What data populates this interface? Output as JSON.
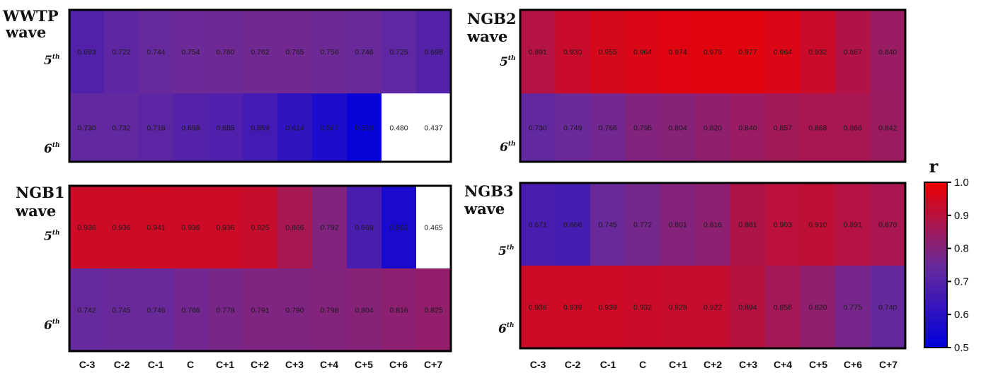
{
  "chart_data": [
    {
      "type": "heatmap",
      "title": "WWTP wave",
      "title_lines": [
        "WWTP",
        "wave"
      ],
      "rows": [
        {
          "base": "5",
          "sup": "th"
        },
        {
          "base": "6",
          "sup": "th"
        }
      ],
      "columns": [
        "C-3",
        "C-2",
        "C-1",
        "C",
        "C+1",
        "C+2",
        "C+3",
        "C+4",
        "C+5",
        "C+6",
        "C+7"
      ],
      "show_column_labels": true,
      "values": [
        [
          0.693,
          0.722,
          0.744,
          0.754,
          0.76,
          0.762,
          0.765,
          0.756,
          0.746,
          0.725,
          0.698
        ],
        [
          0.73,
          0.732,
          0.718,
          0.698,
          0.685,
          0.659,
          0.614,
          0.567,
          0.519,
          0.48,
          0.437
        ]
      ],
      "labels": [
        [
          "0.693",
          "0.722",
          "0.744",
          "0.754",
          "0.760",
          "0.762",
          "0.765",
          "0.756",
          "0.746",
          "0.725",
          "0.698"
        ],
        [
          "0.730",
          "0.732",
          "0.718",
          "0.698",
          "0.685",
          "0.659",
          "0.614",
          "0.567",
          "0.519",
          "0.480",
          "0.437"
        ]
      ]
    },
    {
      "type": "heatmap",
      "title": "NGB2 wave",
      "title_lines": [
        "NGB2",
        "wave"
      ],
      "rows": [
        {
          "base": "5",
          "sup": "th"
        },
        {
          "base": "6",
          "sup": "th"
        }
      ],
      "columns": [
        "C-3",
        "C-2",
        "C-1",
        "C",
        "C+1",
        "C+2",
        "C+3",
        "C+4",
        "C+5",
        "C+6",
        "C+7"
      ],
      "show_column_labels": false,
      "values": [
        [
          0.891,
          0.93,
          0.955,
          0.964,
          0.974,
          0.976,
          0.977,
          0.964,
          0.932,
          0.887,
          0.84
        ],
        [
          0.73,
          0.749,
          0.766,
          0.795,
          0.804,
          0.82,
          0.84,
          0.857,
          0.868,
          0.866,
          0.842
        ]
      ],
      "labels": [
        [
          "0.891",
          "0.930",
          "0.955",
          "0.964",
          "0.974",
          "0.976",
          "0.977",
          "0.964",
          "0.932",
          "0.887",
          "0.840"
        ],
        [
          "0.730",
          "0.749",
          "0.766",
          "0.795",
          "0.804",
          "0.820",
          "0.840",
          "0.857",
          "0.868",
          "0.866",
          "0.842"
        ]
      ]
    },
    {
      "type": "heatmap",
      "title": "NGB1 wave",
      "title_lines": [
        "NGB1",
        "wave"
      ],
      "rows": [
        {
          "base": "5",
          "sup": "th"
        },
        {
          "base": "6",
          "sup": "th"
        }
      ],
      "columns": [
        "C-3",
        "C-2",
        "C-1",
        "C",
        "C+1",
        "C+2",
        "C+3",
        "C+4",
        "C+5",
        "C+6",
        "C+7"
      ],
      "show_column_labels": true,
      "values": [
        [
          0.936,
          0.936,
          0.941,
          0.936,
          0.936,
          0.925,
          0.866,
          0.792,
          0.669,
          0.561,
          0.465
        ],
        [
          0.742,
          0.745,
          0.746,
          0.766,
          0.778,
          0.791,
          0.79,
          0.798,
          0.804,
          0.816,
          0.825
        ]
      ],
      "labels": [
        [
          "0.936",
          "0.936",
          "0.941",
          "0.936",
          "0.936",
          "0.925",
          "0.866",
          "0.792",
          "0.669",
          "0.561",
          "0.465"
        ],
        [
          "0.742",
          "0.745",
          "0.746",
          "0.766",
          "0.778",
          "0.791",
          "0.790",
          "0.798",
          "0.804",
          "0.816",
          "0.825"
        ]
      ]
    },
    {
      "type": "heatmap",
      "title": "NGB3 wave",
      "title_lines": [
        "NGB3",
        "wave"
      ],
      "rows": [
        {
          "base": "5",
          "sup": "th"
        },
        {
          "base": "6",
          "sup": "th"
        }
      ],
      "columns": [
        "C-3",
        "C-2",
        "C-1",
        "C",
        "C+1",
        "C+2",
        "C+3",
        "C+4",
        "C+5",
        "C+6",
        "C+7"
      ],
      "show_column_labels": true,
      "values": [
        [
          0.671,
          0.666,
          0.745,
          0.772,
          0.801,
          0.816,
          0.881,
          0.903,
          0.91,
          0.891,
          0.87
        ],
        [
          0.936,
          0.939,
          0.939,
          0.932,
          0.928,
          0.922,
          0.894,
          0.858,
          0.82,
          0.775,
          0.74
        ]
      ],
      "labels": [
        [
          "0.671",
          "0.666",
          "0.745",
          "0.772",
          "0.801",
          "0.816",
          "0.881",
          "0.903",
          "0.910",
          "0.891",
          "0.870"
        ],
        [
          "0.936",
          "0.939",
          "0.939",
          "0.932",
          "0.928",
          "0.922",
          "0.894",
          "0.858",
          "0.820",
          "0.775",
          "0.740"
        ]
      ]
    }
  ],
  "colorbar": {
    "title": "r",
    "min": 0.5,
    "max": 1.0,
    "ticks": [
      "1.0",
      "0.9",
      "0.8",
      "0.7",
      "0.6",
      "0.5"
    ],
    "tick_values": [
      1.0,
      0.9,
      0.8,
      0.7,
      0.6,
      0.5
    ],
    "color_low": "#0000dd",
    "color_mid": "#6a2b9a",
    "color_high": "#ee0000",
    "color_below_min": "#ffffff"
  }
}
